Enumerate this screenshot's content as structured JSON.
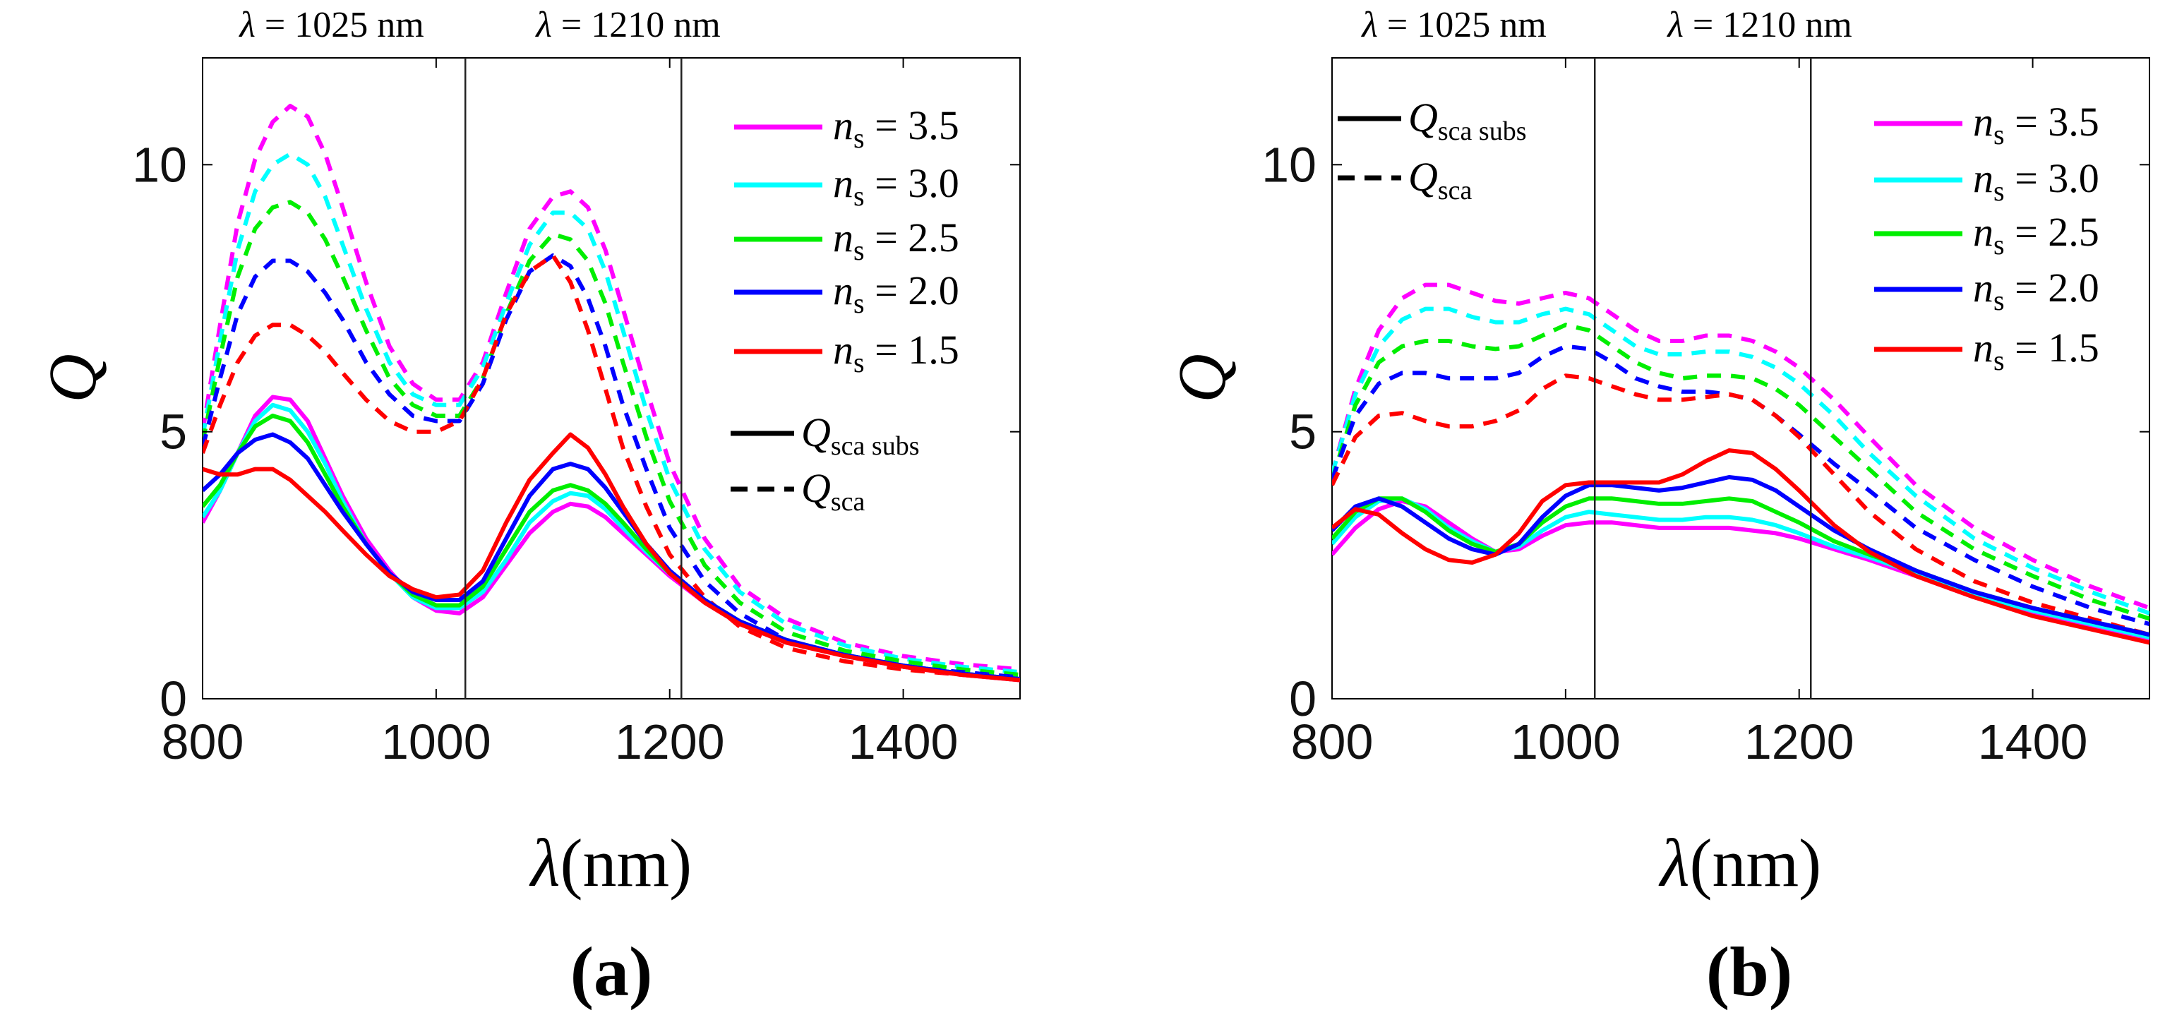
{
  "figure": {
    "panels": [
      "a",
      "b"
    ]
  },
  "legend_common": {
    "ns_symbol": "n",
    "ns_sub": "s",
    "q_symbol": "Q",
    "q_subs_sub": "sca subs",
    "q_sca_sub": "sca"
  },
  "chart_data": [
    {
      "type": "line",
      "panel_label": "(a)",
      "panel_letter": "a",
      "title_lines": [
        {
          "symbol": "λ",
          "text": " = 1025 nm"
        },
        {
          "symbol": "λ",
          "text": " = 1210 nm"
        }
      ],
      "xlabel_symbol": "λ",
      "xlabel_text": "(nm)",
      "ylabel": "Q",
      "xlim": [
        800,
        1500
      ],
      "ylim": [
        0,
        12
      ],
      "xticks": [
        800,
        1000,
        1200,
        1400
      ],
      "yticks": [
        0,
        5,
        10
      ],
      "vlines": [
        1025,
        1210
      ],
      "legend_position": "top-right",
      "x": [
        800,
        815,
        830,
        845,
        860,
        875,
        890,
        905,
        920,
        940,
        960,
        980,
        1000,
        1020,
        1040,
        1060,
        1080,
        1100,
        1115,
        1130,
        1145,
        1160,
        1180,
        1200,
        1230,
        1260,
        1300,
        1350,
        1400,
        1450,
        1500
      ],
      "series": [
        {
          "name": "3.5",
          "color": "#ff00ff",
          "style": "dashed",
          "values": [
            5.0,
            7.0,
            8.9,
            10.1,
            10.8,
            11.1,
            10.9,
            10.2,
            9.2,
            7.8,
            6.6,
            5.9,
            5.6,
            5.6,
            6.3,
            7.6,
            8.8,
            9.4,
            9.5,
            9.2,
            8.4,
            7.3,
            5.8,
            4.4,
            3.0,
            2.1,
            1.5,
            1.05,
            0.8,
            0.65,
            0.55
          ]
        },
        {
          "name": "3.0",
          "color": "#00ffff",
          "style": "dashed",
          "values": [
            4.9,
            6.7,
            8.4,
            9.5,
            10.0,
            10.2,
            10.0,
            9.4,
            8.5,
            7.3,
            6.3,
            5.7,
            5.5,
            5.5,
            6.2,
            7.4,
            8.5,
            9.1,
            9.1,
            8.8,
            8.0,
            6.9,
            5.4,
            4.1,
            2.8,
            2.0,
            1.4,
            1.0,
            0.75,
            0.6,
            0.5
          ]
        },
        {
          "name": "2.5",
          "color": "#00ee00",
          "style": "dashed",
          "values": [
            4.8,
            6.4,
            7.9,
            8.8,
            9.2,
            9.3,
            9.1,
            8.6,
            7.9,
            6.9,
            6.0,
            5.5,
            5.3,
            5.3,
            6.0,
            7.2,
            8.2,
            8.7,
            8.6,
            8.2,
            7.4,
            6.3,
            4.9,
            3.7,
            2.5,
            1.8,
            1.25,
            0.9,
            0.7,
            0.55,
            0.45
          ]
        },
        {
          "name": "2.0",
          "color": "#0000ff",
          "style": "dashed",
          "values": [
            4.7,
            6.0,
            7.2,
            7.9,
            8.2,
            8.2,
            8.0,
            7.6,
            7.1,
            6.3,
            5.7,
            5.3,
            5.2,
            5.2,
            5.9,
            7.1,
            8.0,
            8.3,
            8.1,
            7.5,
            6.6,
            5.5,
            4.3,
            3.2,
            2.2,
            1.6,
            1.1,
            0.8,
            0.6,
            0.5,
            0.4
          ]
        },
        {
          "name": "1.5",
          "color": "#ff0000",
          "style": "dashed",
          "values": [
            4.6,
            5.5,
            6.3,
            6.8,
            7.0,
            7.0,
            6.8,
            6.5,
            6.1,
            5.6,
            5.2,
            5.0,
            5.0,
            5.2,
            6.0,
            7.2,
            8.0,
            8.3,
            7.8,
            6.9,
            5.8,
            4.7,
            3.6,
            2.7,
            1.9,
            1.35,
            0.95,
            0.7,
            0.55,
            0.45,
            0.35
          ]
        },
        {
          "name": "3.5",
          "color": "#ff00ff",
          "style": "solid",
          "values": [
            3.3,
            3.9,
            4.6,
            5.3,
            5.65,
            5.6,
            5.2,
            4.5,
            3.8,
            3.0,
            2.4,
            1.9,
            1.65,
            1.6,
            1.9,
            2.5,
            3.1,
            3.5,
            3.65,
            3.6,
            3.4,
            3.1,
            2.7,
            2.3,
            1.8,
            1.4,
            1.05,
            0.8,
            0.6,
            0.45,
            0.35
          ]
        },
        {
          "name": "3.0",
          "color": "#00ffff",
          "style": "solid",
          "values": [
            3.4,
            3.9,
            4.6,
            5.2,
            5.5,
            5.4,
            5.0,
            4.4,
            3.7,
            2.9,
            2.35,
            1.9,
            1.7,
            1.7,
            2.0,
            2.6,
            3.3,
            3.7,
            3.85,
            3.8,
            3.55,
            3.2,
            2.75,
            2.35,
            1.85,
            1.45,
            1.1,
            0.82,
            0.62,
            0.47,
            0.37
          ]
        },
        {
          "name": "2.5",
          "color": "#00ee00",
          "style": "solid",
          "values": [
            3.6,
            4.0,
            4.6,
            5.1,
            5.3,
            5.2,
            4.8,
            4.2,
            3.6,
            2.9,
            2.35,
            1.95,
            1.75,
            1.75,
            2.1,
            2.8,
            3.5,
            3.9,
            4.0,
            3.9,
            3.65,
            3.3,
            2.8,
            2.35,
            1.85,
            1.45,
            1.1,
            0.82,
            0.62,
            0.47,
            0.37
          ]
        },
        {
          "name": "2.0",
          "color": "#0000ff",
          "style": "solid",
          "values": [
            3.9,
            4.2,
            4.6,
            4.85,
            4.95,
            4.8,
            4.5,
            4.0,
            3.5,
            2.9,
            2.35,
            2.0,
            1.85,
            1.85,
            2.2,
            3.0,
            3.8,
            4.3,
            4.4,
            4.3,
            3.95,
            3.5,
            2.9,
            2.4,
            1.85,
            1.45,
            1.1,
            0.82,
            0.62,
            0.47,
            0.37
          ]
        },
        {
          "name": "1.5",
          "color": "#ff0000",
          "style": "solid",
          "values": [
            4.3,
            4.2,
            4.2,
            4.3,
            4.3,
            4.1,
            3.8,
            3.5,
            3.15,
            2.7,
            2.3,
            2.05,
            1.9,
            1.95,
            2.4,
            3.3,
            4.1,
            4.6,
            4.95,
            4.7,
            4.2,
            3.6,
            2.9,
            2.35,
            1.8,
            1.4,
            1.05,
            0.8,
            0.6,
            0.45,
            0.35
          ]
        }
      ]
    },
    {
      "type": "line",
      "panel_label": "(b)",
      "panel_letter": "b",
      "title_lines": [
        {
          "symbol": "λ",
          "text": " = 1025 nm"
        },
        {
          "symbol": "λ",
          "text": " = 1210 nm"
        }
      ],
      "xlabel_symbol": "λ",
      "xlabel_text": "(nm)",
      "ylabel": "Q",
      "xlim": [
        800,
        1500
      ],
      "ylim": [
        0,
        12
      ],
      "xticks": [
        800,
        1000,
        1200,
        1400
      ],
      "yticks": [
        0,
        5,
        10
      ],
      "vlines": [
        1025,
        1210
      ],
      "legend_position": "top-right",
      "x": [
        800,
        820,
        840,
        860,
        880,
        900,
        920,
        940,
        960,
        980,
        1000,
        1020,
        1040,
        1060,
        1080,
        1100,
        1120,
        1140,
        1160,
        1180,
        1200,
        1230,
        1260,
        1300,
        1350,
        1400,
        1450,
        1500
      ],
      "series": [
        {
          "name": "3.5",
          "color": "#ff00ff",
          "style": "dashed",
          "values": [
            4.2,
            5.8,
            6.9,
            7.5,
            7.75,
            7.75,
            7.6,
            7.45,
            7.4,
            7.5,
            7.6,
            7.5,
            7.2,
            6.9,
            6.7,
            6.7,
            6.8,
            6.8,
            6.7,
            6.5,
            6.2,
            5.6,
            4.9,
            4.0,
            3.2,
            2.6,
            2.1,
            1.7
          ]
        },
        {
          "name": "3.0",
          "color": "#00ffff",
          "style": "dashed",
          "values": [
            4.2,
            5.7,
            6.6,
            7.1,
            7.3,
            7.3,
            7.15,
            7.05,
            7.05,
            7.2,
            7.3,
            7.2,
            6.9,
            6.6,
            6.45,
            6.45,
            6.5,
            6.5,
            6.4,
            6.2,
            5.9,
            5.3,
            4.6,
            3.8,
            3.0,
            2.45,
            2.0,
            1.6
          ]
        },
        {
          "name": "2.5",
          "color": "#00ee00",
          "style": "dashed",
          "values": [
            4.1,
            5.5,
            6.3,
            6.6,
            6.7,
            6.7,
            6.6,
            6.55,
            6.6,
            6.8,
            7.0,
            6.9,
            6.6,
            6.3,
            6.1,
            6.0,
            6.05,
            6.05,
            6.0,
            5.8,
            5.5,
            4.9,
            4.3,
            3.5,
            2.8,
            2.3,
            1.85,
            1.5
          ]
        },
        {
          "name": "2.0",
          "color": "#0000ff",
          "style": "dashed",
          "values": [
            4.1,
            5.3,
            5.9,
            6.1,
            6.1,
            6.0,
            6.0,
            6.0,
            6.1,
            6.4,
            6.6,
            6.55,
            6.3,
            6.0,
            5.85,
            5.75,
            5.75,
            5.7,
            5.6,
            5.3,
            4.95,
            4.4,
            3.9,
            3.2,
            2.6,
            2.1,
            1.7,
            1.4
          ]
        },
        {
          "name": "1.5",
          "color": "#ff0000",
          "style": "dashed",
          "values": [
            4.0,
            4.9,
            5.3,
            5.35,
            5.2,
            5.1,
            5.1,
            5.2,
            5.4,
            5.8,
            6.05,
            6.0,
            5.85,
            5.7,
            5.6,
            5.6,
            5.65,
            5.7,
            5.6,
            5.3,
            4.9,
            4.2,
            3.5,
            2.8,
            2.2,
            1.8,
            1.5,
            1.2
          ]
        },
        {
          "name": "3.5",
          "color": "#ff00ff",
          "style": "solid",
          "values": [
            2.7,
            3.2,
            3.55,
            3.7,
            3.6,
            3.3,
            3.0,
            2.75,
            2.8,
            3.05,
            3.25,
            3.3,
            3.3,
            3.25,
            3.2,
            3.2,
            3.2,
            3.2,
            3.15,
            3.1,
            3.0,
            2.8,
            2.6,
            2.3,
            1.9,
            1.6,
            1.35,
            1.1
          ]
        },
        {
          "name": "3.0",
          "color": "#00ffff",
          "style": "solid",
          "values": [
            2.9,
            3.4,
            3.7,
            3.75,
            3.55,
            3.2,
            2.95,
            2.75,
            2.85,
            3.15,
            3.4,
            3.5,
            3.45,
            3.4,
            3.35,
            3.35,
            3.4,
            3.4,
            3.35,
            3.25,
            3.1,
            2.85,
            2.65,
            2.35,
            1.95,
            1.65,
            1.4,
            1.15
          ]
        },
        {
          "name": "2.5",
          "color": "#00ee00",
          "style": "solid",
          "values": [
            3.0,
            3.5,
            3.75,
            3.75,
            3.5,
            3.15,
            2.9,
            2.75,
            2.9,
            3.3,
            3.6,
            3.75,
            3.75,
            3.7,
            3.65,
            3.65,
            3.7,
            3.75,
            3.7,
            3.5,
            3.3,
            2.95,
            2.7,
            2.4,
            2.0,
            1.7,
            1.45,
            1.2
          ]
        },
        {
          "name": "2.0",
          "color": "#0000ff",
          "style": "solid",
          "values": [
            3.15,
            3.6,
            3.75,
            3.6,
            3.3,
            3.0,
            2.8,
            2.7,
            2.9,
            3.4,
            3.8,
            4.0,
            4.0,
            3.95,
            3.9,
            3.95,
            4.05,
            4.15,
            4.1,
            3.9,
            3.6,
            3.15,
            2.8,
            2.4,
            2.0,
            1.7,
            1.45,
            1.2
          ]
        },
        {
          "name": "1.5",
          "color": "#ff0000",
          "style": "solid",
          "values": [
            3.2,
            3.55,
            3.45,
            3.1,
            2.8,
            2.6,
            2.55,
            2.7,
            3.1,
            3.7,
            4.0,
            4.05,
            4.05,
            4.05,
            4.05,
            4.2,
            4.45,
            4.65,
            4.6,
            4.3,
            3.9,
            3.25,
            2.75,
            2.3,
            1.9,
            1.55,
            1.3,
            1.05
          ]
        }
      ]
    }
  ]
}
